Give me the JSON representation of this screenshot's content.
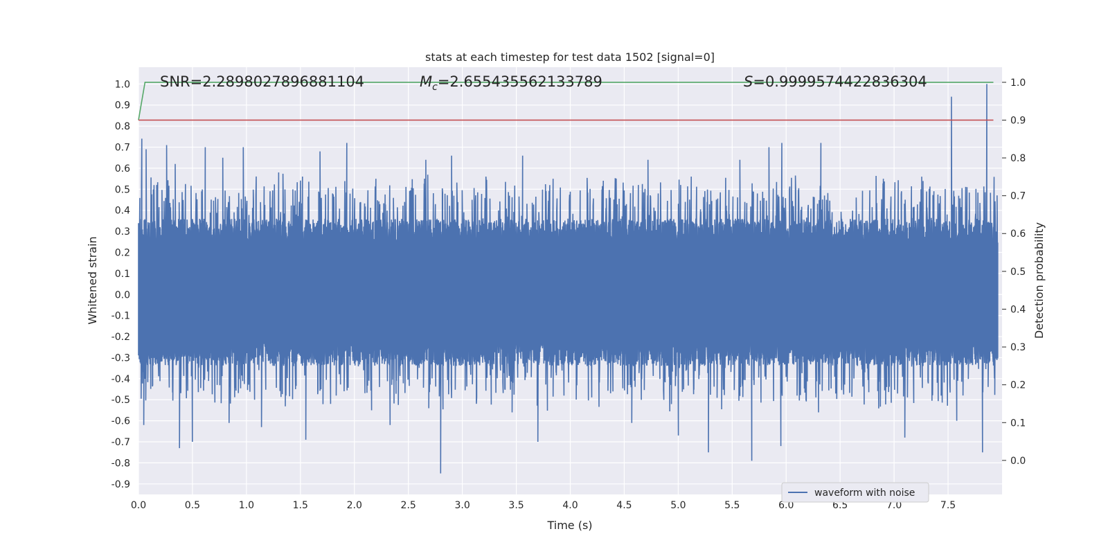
{
  "chart_data": {
    "type": "line",
    "title": "stats at each timestep for test data 1502 [signal=0]",
    "xlabel": "Time (s)",
    "ylabel_left": "Whitened strain",
    "ylabel_right": "Detection probability",
    "xlim": [
      0.0,
      8.0
    ],
    "ylim_left": [
      -0.95,
      1.08
    ],
    "ylim_right": [
      -0.09,
      1.04
    ],
    "x_ticks": [
      "0.0",
      "0.5",
      "1.0",
      "1.5",
      "2.0",
      "2.5",
      "3.0",
      "3.5",
      "4.0",
      "4.5",
      "5.0",
      "5.5",
      "6.0",
      "6.5",
      "7.0",
      "7.5"
    ],
    "y_ticks_left": [
      "1.0",
      "0.9",
      "0.8",
      "0.7",
      "0.6",
      "0.5",
      "0.4",
      "0.3",
      "0.2",
      "0.1",
      "0.0",
      "-0.1",
      "-0.2",
      "-0.3",
      "-0.4",
      "-0.5",
      "-0.6",
      "-0.7",
      "-0.8",
      "-0.9"
    ],
    "y_ticks_right": [
      "1.0",
      "0.9",
      "0.8",
      "0.7",
      "0.6",
      "0.5",
      "0.4",
      "0.3",
      "0.2",
      "0.1",
      "0.0"
    ],
    "grid": true,
    "legend": {
      "position": "lower-right",
      "entries": [
        "waveform with noise"
      ]
    },
    "annotations": {
      "snr": "SNR=2.2898027896881104",
      "mc_symbol": "M",
      "mc_sub": "c",
      "mc_value": "=2.655435562133789",
      "s_symbol": "S",
      "s_value": "=0.9999574422836304"
    },
    "series": [
      {
        "name": "waveform with noise",
        "axis": "left",
        "color": "#4c72b0",
        "description_of_envelope": "dense noise strain between about -0.85 and 1.0",
        "peaks_upper": [
          [
            0.03,
            0.74
          ],
          [
            0.07,
            0.69
          ],
          [
            0.17,
            0.52
          ],
          [
            0.26,
            0.71
          ],
          [
            0.34,
            0.62
          ],
          [
            0.62,
            0.7
          ],
          [
            0.78,
            0.65
          ],
          [
            0.97,
            0.7
          ],
          [
            1.3,
            0.58
          ],
          [
            1.52,
            0.56
          ],
          [
            1.68,
            0.68
          ],
          [
            1.93,
            0.72
          ],
          [
            2.2,
            0.55
          ],
          [
            2.66,
            0.64
          ],
          [
            2.9,
            0.66
          ],
          [
            3.22,
            0.56
          ],
          [
            3.56,
            0.66
          ],
          [
            3.84,
            0.55
          ],
          [
            4.3,
            0.44
          ],
          [
            4.72,
            0.64
          ],
          [
            5.12,
            0.56
          ],
          [
            5.57,
            0.64
          ],
          [
            5.84,
            0.7
          ],
          [
            5.96,
            0.72
          ],
          [
            6.32,
            0.72
          ],
          [
            6.9,
            0.55
          ],
          [
            7.25,
            0.5
          ],
          [
            7.53,
            0.94
          ],
          [
            7.86,
            1.0
          ]
        ],
        "peaks_lower": [
          [
            0.05,
            -0.62
          ],
          [
            0.38,
            -0.73
          ],
          [
            0.5,
            -0.7
          ],
          [
            0.84,
            -0.61
          ],
          [
            1.14,
            -0.63
          ],
          [
            1.55,
            -0.69
          ],
          [
            2.33,
            -0.62
          ],
          [
            2.8,
            -0.85
          ],
          [
            3.46,
            -0.56
          ],
          [
            3.7,
            -0.7
          ],
          [
            4.57,
            -0.61
          ],
          [
            5.0,
            -0.67
          ],
          [
            5.28,
            -0.75
          ],
          [
            5.68,
            -0.79
          ],
          [
            5.95,
            -0.72
          ],
          [
            6.3,
            -0.56
          ],
          [
            7.1,
            -0.68
          ],
          [
            7.58,
            -0.6
          ],
          [
            7.82,
            -0.75
          ]
        ]
      },
      {
        "name": "",
        "axis": "right",
        "color": "#55a868",
        "x": [
          0.0,
          0.06,
          7.92
        ],
        "y": [
          0.9,
          1.0,
          1.0
        ]
      },
      {
        "name": "",
        "axis": "right",
        "color": "#c44e52",
        "x": [
          0.0,
          7.92
        ],
        "y": [
          0.9,
          0.9
        ]
      }
    ]
  }
}
